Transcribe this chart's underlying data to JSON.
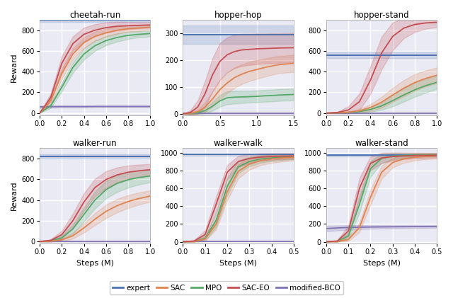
{
  "subplots": [
    {
      "title": "cheetah-run",
      "xlim": [
        0,
        1.0
      ],
      "ylim": [
        -20,
        900
      ],
      "xticks": [
        0.0,
        0.2,
        0.4,
        0.6,
        0.8,
        1.0
      ],
      "yticks": [
        0,
        200,
        400,
        600,
        800
      ],
      "show_ylabel": true,
      "show_xlabel": false,
      "expert_val": 900,
      "expert_std": 20,
      "curves": {
        "SAC": {
          "mean": [
            0,
            120,
            380,
            570,
            680,
            740,
            775,
            800,
            815,
            822,
            828
          ],
          "std": [
            0,
            30,
            50,
            55,
            50,
            45,
            40,
            35,
            30,
            28,
            25
          ]
        },
        "MPO": {
          "mean": [
            0,
            70,
            250,
            440,
            570,
            650,
            700,
            730,
            750,
            760,
            768
          ],
          "std": [
            0,
            20,
            40,
            50,
            55,
            50,
            45,
            40,
            35,
            30,
            28
          ]
        },
        "SAC-EO": {
          "mean": [
            0,
            150,
            480,
            670,
            760,
            800,
            825,
            838,
            843,
            847,
            850
          ],
          "std": [
            0,
            40,
            70,
            70,
            65,
            58,
            50,
            42,
            36,
            30,
            26
          ]
        },
        "modified-BCO": {
          "mean": [
            60,
            62,
            63,
            63,
            63,
            64,
            64,
            64,
            64,
            64,
            64
          ],
          "std": [
            12,
            10,
            9,
            9,
            9,
            8,
            8,
            8,
            8,
            8,
            8
          ]
        }
      },
      "x_steps": [
        0.0,
        0.1,
        0.2,
        0.3,
        0.4,
        0.5,
        0.6,
        0.7,
        0.8,
        0.9,
        1.0
      ]
    },
    {
      "title": "hopper-hop",
      "xlim": [
        0,
        1.5
      ],
      "ylim": [
        -5,
        350
      ],
      "xticks": [
        0.0,
        0.5,
        1.0,
        1.5
      ],
      "yticks": [
        0,
        100,
        200,
        300
      ],
      "show_ylabel": false,
      "show_xlabel": false,
      "expert_val": 295,
      "expert_std": 35,
      "curves": {
        "SAC": {
          "mean": [
            0,
            2,
            8,
            25,
            55,
            90,
            115,
            135,
            148,
            158,
            165,
            172,
            178,
            183,
            188
          ],
          "std": [
            0,
            3,
            8,
            18,
            28,
            35,
            38,
            38,
            37,
            36,
            35,
            34,
            33,
            32,
            32
          ]
        },
        "MPO": {
          "mean": [
            0,
            1,
            4,
            12,
            28,
            48,
            60,
            62,
            63,
            64,
            65,
            67,
            68,
            70,
            72
          ],
          "std": [
            0,
            2,
            5,
            10,
            16,
            22,
            24,
            24,
            23,
            22,
            22,
            22,
            22,
            22,
            22
          ]
        },
        "SAC-EO": {
          "mean": [
            0,
            5,
            25,
            75,
            145,
            195,
            220,
            232,
            238,
            240,
            242,
            243,
            244,
            245,
            246
          ],
          "std": [
            0,
            8,
            25,
            48,
            62,
            68,
            65,
            62,
            60,
            58,
            57,
            56,
            56,
            55,
            55
          ]
        },
        "modified-BCO": {
          "mean": [
            1,
            1,
            1,
            1,
            1,
            1,
            1,
            1,
            1,
            1,
            1,
            1,
            1,
            1,
            1
          ],
          "std": [
            0.5,
            0.5,
            0.5,
            0.5,
            0.5,
            0.5,
            0.5,
            0.5,
            0.5,
            0.5,
            0.5,
            0.5,
            0.5,
            0.5,
            0.5
          ]
        }
      },
      "x_steps": [
        0.0,
        0.1,
        0.2,
        0.3,
        0.4,
        0.5,
        0.6,
        0.7,
        0.8,
        0.9,
        1.0,
        1.1,
        1.2,
        1.3,
        1.5
      ]
    },
    {
      "title": "hopper-stand",
      "xlim": [
        0,
        1.0
      ],
      "ylim": [
        -20,
        900
      ],
      "xticks": [
        0.0,
        0.2,
        0.4,
        0.6,
        0.8,
        1.0
      ],
      "yticks": [
        0,
        200,
        400,
        600,
        800
      ],
      "show_ylabel": false,
      "show_xlabel": false,
      "expert_val": 560,
      "expert_std": 30,
      "curves": {
        "SAC": {
          "mean": [
            0,
            2,
            8,
            22,
            55,
            105,
            175,
            240,
            295,
            335,
            365
          ],
          "std": [
            0,
            3,
            8,
            18,
            32,
            52,
            68,
            78,
            80,
            78,
            75
          ]
        },
        "MPO": {
          "mean": [
            0,
            2,
            6,
            15,
            35,
            70,
            120,
            175,
            225,
            265,
            298
          ],
          "std": [
            0,
            2,
            5,
            12,
            22,
            38,
            55,
            65,
            68,
            68,
            65
          ]
        },
        "SAC-EO": {
          "mean": [
            0,
            5,
            30,
            110,
            320,
            580,
            740,
            820,
            855,
            870,
            876
          ],
          "std": [
            0,
            8,
            35,
            80,
            135,
            158,
            135,
            98,
            72,
            56,
            48
          ]
        },
        "modified-BCO": {
          "mean": [
            1,
            1,
            1,
            1,
            1,
            1,
            1,
            1,
            1,
            1,
            1
          ],
          "std": [
            0.5,
            0.5,
            0.5,
            0.5,
            0.5,
            0.5,
            0.5,
            0.5,
            0.5,
            0.5,
            0.5
          ]
        }
      },
      "x_steps": [
        0.0,
        0.1,
        0.2,
        0.3,
        0.4,
        0.5,
        0.6,
        0.7,
        0.8,
        0.9,
        1.0
      ]
    },
    {
      "title": "walker-run",
      "xlim": [
        0,
        1.0
      ],
      "ylim": [
        -20,
        900
      ],
      "xticks": [
        0.0,
        0.2,
        0.4,
        0.6,
        0.8,
        1.0
      ],
      "yticks": [
        0,
        200,
        400,
        600,
        800
      ],
      "show_ylabel": true,
      "show_xlabel": true,
      "expert_val": 820,
      "expert_std": 18,
      "curves": {
        "SAC": {
          "mean": [
            0,
            2,
            15,
            55,
            130,
            215,
            290,
            345,
            385,
            415,
            438
          ],
          "std": [
            0,
            3,
            12,
            28,
            45,
            58,
            65,
            65,
            62,
            58,
            55
          ]
        },
        "MPO": {
          "mean": [
            0,
            5,
            35,
            120,
            260,
            400,
            500,
            560,
            595,
            618,
            632
          ],
          "std": [
            0,
            5,
            20,
            45,
            68,
            82,
            85,
            82,
            75,
            68,
            62
          ]
        },
        "SAC-EO": {
          "mean": [
            0,
            10,
            65,
            200,
            380,
            520,
            598,
            642,
            668,
            682,
            692
          ],
          "std": [
            0,
            12,
            38,
            68,
            85,
            85,
            80,
            72,
            65,
            60,
            55
          ]
        },
        "modified-BCO": {
          "mean": [
            1,
            1,
            1,
            1,
            1,
            1,
            1,
            1,
            1,
            1,
            1
          ],
          "std": [
            0.5,
            0.5,
            0.5,
            0.5,
            0.5,
            0.5,
            0.5,
            0.5,
            0.5,
            0.5,
            0.5
          ]
        }
      },
      "x_steps": [
        0.0,
        0.1,
        0.2,
        0.3,
        0.4,
        0.5,
        0.6,
        0.7,
        0.8,
        0.9,
        1.0
      ]
    },
    {
      "title": "walker-walk",
      "xlim": [
        0,
        0.5
      ],
      "ylim": [
        -20,
        1050
      ],
      "xticks": [
        0.0,
        0.1,
        0.2,
        0.3,
        0.4,
        0.5
      ],
      "yticks": [
        0,
        200,
        400,
        600,
        800,
        1000
      ],
      "show_ylabel": false,
      "show_xlabel": true,
      "expert_val": 978,
      "expert_std": 12,
      "curves": {
        "SAC": {
          "mean": [
            0,
            3,
            30,
            200,
            560,
            790,
            870,
            910,
            930,
            940,
            948
          ],
          "std": [
            0,
            4,
            22,
            60,
            95,
            80,
            62,
            52,
            45,
            40,
            36
          ]
        },
        "MPO": {
          "mean": [
            0,
            4,
            38,
            240,
            620,
            840,
            900,
            928,
            940,
            948,
            953
          ],
          "std": [
            0,
            5,
            28,
            72,
            100,
            72,
            52,
            42,
            36,
            32,
            29
          ]
        },
        "SAC-EO": {
          "mean": [
            0,
            8,
            80,
            420,
            780,
            900,
            935,
            950,
            956,
            960,
            963
          ],
          "std": [
            0,
            10,
            48,
            88,
            82,
            62,
            50,
            43,
            38,
            35,
            32
          ]
        },
        "modified-BCO": {
          "mean": [
            1,
            1,
            1,
            1,
            1,
            1,
            1,
            1,
            1,
            1,
            1
          ],
          "std": [
            0.5,
            0.5,
            0.5,
            0.5,
            0.5,
            0.5,
            0.5,
            0.5,
            0.5,
            0.5,
            0.5
          ]
        }
      },
      "x_steps": [
        0.0,
        0.05,
        0.1,
        0.15,
        0.2,
        0.25,
        0.3,
        0.35,
        0.4,
        0.45,
        0.5
      ]
    },
    {
      "title": "walker-stand",
      "xlim": [
        0,
        0.5
      ],
      "ylim": [
        -20,
        1050
      ],
      "xticks": [
        0.0,
        0.1,
        0.2,
        0.3,
        0.4,
        0.5
      ],
      "yticks": [
        0,
        200,
        400,
        600,
        800,
        1000
      ],
      "show_ylabel": false,
      "show_xlabel": true,
      "expert_val": 972,
      "expert_std": 12,
      "curves": {
        "SAC": {
          "mean": [
            0,
            3,
            25,
            160,
            500,
            780,
            888,
            930,
            950,
            958,
            963
          ],
          "std": [
            0,
            4,
            18,
            52,
            85,
            72,
            55,
            45,
            38,
            33,
            30
          ]
        },
        "MPO": {
          "mean": [
            0,
            5,
            65,
            420,
            820,
            935,
            960,
            968,
            972,
            975,
            977
          ],
          "std": [
            0,
            6,
            40,
            95,
            88,
            52,
            38,
            28,
            23,
            20,
            18
          ]
        },
        "SAC-EO": {
          "mean": [
            0,
            8,
            120,
            600,
            880,
            940,
            956,
            963,
            967,
            969,
            971
          ],
          "std": [
            0,
            10,
            62,
            115,
            78,
            58,
            44,
            36,
            31,
            28,
            26
          ]
        },
        "modified-BCO": {
          "mean": [
            148,
            155,
            160,
            163,
            165,
            167,
            168,
            169,
            170,
            170,
            171
          ],
          "std": [
            32,
            28,
            25,
            22,
            20,
            18,
            17,
            16,
            16,
            15,
            15
          ]
        }
      },
      "x_steps": [
        0.0,
        0.05,
        0.1,
        0.15,
        0.2,
        0.25,
        0.3,
        0.35,
        0.4,
        0.45,
        0.5
      ]
    }
  ],
  "colors": {
    "expert": "#4c72b0",
    "SAC": "#dd8452",
    "MPO": "#55a868",
    "SAC-EO": "#c44e52",
    "modified-BCO": "#8172b2"
  },
  "expert_fill_alpha": 0.18,
  "curve_fill_alpha": 0.22,
  "background_color": "#eaeaf4",
  "fig_facecolor": "#ffffff",
  "grid_color": "#ffffff",
  "grid_linewidth": 1.0
}
